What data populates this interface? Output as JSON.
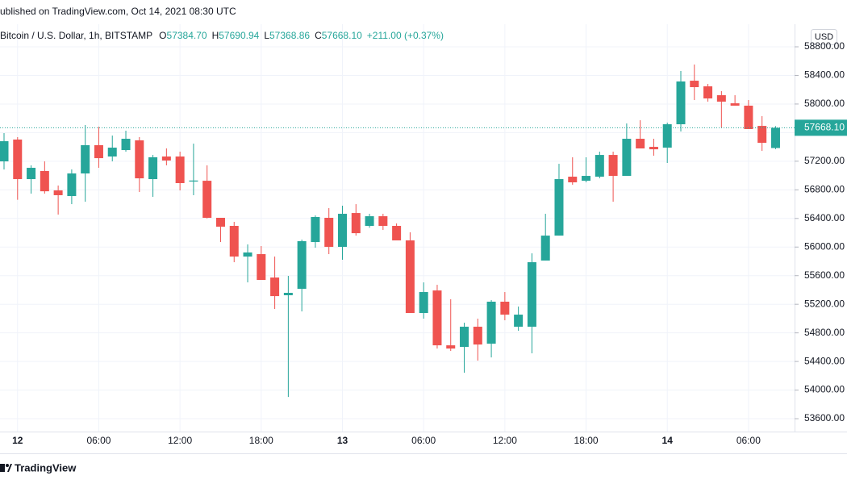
{
  "header": "ublished on TradingView.com, Oct 14, 2021 08:30 UTC",
  "footer": "TradingView",
  "chart_data": {
    "type": "candlestick",
    "legend": {
      "symbol": "Bitcoin / U.S. Dollar, 1h, BITSTAMP",
      "items": [
        {
          "key": "O",
          "value": "57384.70"
        },
        {
          "key": "H",
          "value": "57690.94"
        },
        {
          "key": "L",
          "value": "57368.86"
        },
        {
          "key": "C",
          "value": "57668.10"
        }
      ],
      "change": "+211.00 (+0.37%)"
    },
    "currency": "USD",
    "price_label": "57668.10",
    "up_color": "#26a69a",
    "down_color": "#ef5350",
    "grid": true,
    "categories": [
      null,
      "12",
      null,
      null,
      null,
      null,
      null,
      "06:00",
      null,
      null,
      null,
      null,
      null,
      "12:00",
      null,
      null,
      null,
      null,
      null,
      "18:00",
      null,
      null,
      null,
      null,
      null,
      "13",
      null,
      null,
      null,
      null,
      null,
      "06:00",
      null,
      null,
      null,
      null,
      null,
      "12:00",
      null,
      null,
      null,
      null,
      null,
      "18:00",
      null,
      null,
      null,
      null,
      null,
      "14",
      null,
      null,
      null,
      null,
      null,
      "06:00",
      null,
      null
    ],
    "open": [
      57198,
      57503,
      56950,
      57063,
      56792,
      56713,
      57029,
      57424,
      57266,
      57356,
      57492,
      56950,
      57266,
      57266,
      56916,
      56927,
      56409,
      56296,
      55867,
      55901,
      55574,
      55326,
      55416,
      56070,
      56409,
      56003,
      56476,
      56296,
      56431,
      56296,
      56093,
      55078,
      55393,
      54626,
      54604,
      54886,
      54649,
      55236,
      54886,
      54886,
      55811,
      56160,
      56984,
      56927,
      56984,
      57288,
      56995,
      57514,
      57401,
      57390,
      57717,
      58326,
      58247,
      58123,
      58010,
      57977,
      57694,
      57384.7
    ],
    "high": [
      57593,
      57537,
      57142,
      57198,
      56860,
      57085,
      57706,
      57683,
      57559,
      57627,
      57537,
      57288,
      57379,
      57334,
      57446,
      57142,
      56409,
      56352,
      56037,
      56014,
      55867,
      55597,
      56104,
      56442,
      56544,
      56578,
      56600,
      56465,
      56465,
      56330,
      56206,
      55506,
      55472,
      55270,
      54942,
      54999,
      55258,
      55371,
      55168,
      55912,
      56465,
      57164,
      57255,
      57255,
      57334,
      57334,
      57728,
      57773,
      57514,
      57740,
      58462,
      58552,
      58281,
      58180,
      58123,
      58056,
      57830,
      57690.94
    ],
    "low": [
      57085,
      56661,
      56747,
      56747,
      56454,
      56600,
      56634,
      57108,
      57198,
      57334,
      56770,
      56702,
      57142,
      56792,
      56725,
      56400,
      56070,
      55788,
      55506,
      55540,
      55134,
      53904,
      55100,
      55991,
      55901,
      55822,
      56160,
      56270,
      56240,
      56093,
      55078,
      54999,
      54581,
      54547,
      54243,
      54412,
      54457,
      54976,
      54829,
      54514,
      55811,
      56160,
      56871,
      56905,
      56961,
      56634,
      56995,
      57379,
      57277,
      57176,
      57616,
      58056,
      58033,
      57672,
      57977,
      57650,
      57345,
      57368.86
    ],
    "close": [
      57480,
      56950,
      57108,
      56780,
      56725,
      57029,
      57424,
      57243,
      57390,
      57514,
      56961,
      57255,
      57210,
      56894,
      56930,
      56409,
      56285,
      55867,
      55924,
      55540,
      55314,
      55360,
      56082,
      56420,
      56003,
      56465,
      56194,
      56431,
      56296,
      56093,
      55078,
      55371,
      54626,
      54581,
      54886,
      54637,
      55236,
      55055,
      55055,
      55788,
      56160,
      56950,
      56905,
      56995,
      57288,
      56995,
      57514,
      57379,
      57367,
      57717,
      58315,
      58236,
      58078,
      58033,
      57977,
      57650,
      57458,
      57668.1
    ],
    "ylim": [
      53420,
      59116
    ],
    "yticks": [
      {
        "value": 53600,
        "label": "53600.00"
      },
      {
        "value": 54000,
        "label": "54000.00"
      },
      {
        "value": 54400,
        "label": "54400.00"
      },
      {
        "value": 54800,
        "label": "54800.00"
      },
      {
        "value": 55200,
        "label": "55200.00"
      },
      {
        "value": 55600,
        "label": "55600.00"
      },
      {
        "value": 56000,
        "label": "56000.00"
      },
      {
        "value": 56400,
        "label": "56400.00"
      },
      {
        "value": 56800,
        "label": "56800.00"
      },
      {
        "value": 57200,
        "label": "57200.00"
      },
      {
        "value": 57600,
        "label": "57600.00"
      },
      {
        "value": 58000,
        "label": "58000.00"
      },
      {
        "value": 58400,
        "label": "58400.00"
      },
      {
        "value": 58800,
        "label": "58800.00"
      }
    ]
  }
}
